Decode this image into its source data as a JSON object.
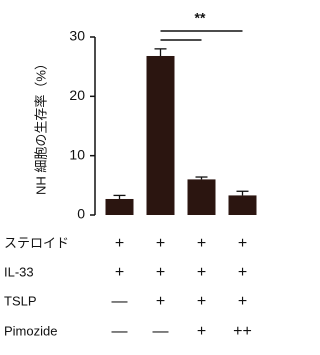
{
  "chart_data": {
    "type": "bar",
    "y_label": "NH 細胞の生存率（%）",
    "categories": [
      null,
      null,
      null,
      null
    ],
    "values": [
      2.7,
      26.8,
      6.0,
      3.3
    ],
    "errors": [
      0.6,
      1.2,
      0.4,
      0.7
    ],
    "color": "#2b1510",
    "ylim": [
      0,
      30
    ],
    "yticks": [
      0,
      10,
      20,
      30
    ],
    "annotation": "**",
    "treatments": [
      {
        "name": "ステロイド",
        "marks": [
          "+",
          "+",
          "+",
          "+"
        ]
      },
      {
        "name": "IL-33",
        "marks": [
          "+",
          "+",
          "+",
          "+"
        ]
      },
      {
        "name": "TSLP",
        "marks": [
          "—",
          "+",
          "+",
          "+"
        ]
      },
      {
        "name": "Pimozide",
        "marks": [
          "—",
          "—",
          "+",
          "++"
        ]
      }
    ]
  }
}
